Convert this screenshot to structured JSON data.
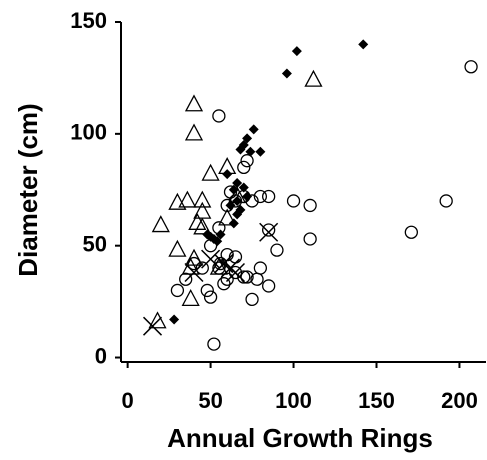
{
  "chart_data": {
    "type": "scatter",
    "xlabel": "Annual Growth Rings",
    "ylabel": "Diameter (cm)",
    "xlim": [
      -4,
      216
    ],
    "ylim": [
      -2,
      150
    ],
    "xticks": [
      0,
      50,
      100,
      150,
      200
    ],
    "yticks": [
      0,
      50,
      100,
      150
    ],
    "series": [
      {
        "marker": "circle",
        "color": "#000000",
        "x": [
          207,
          192,
          171,
          110,
          100,
          110,
          85,
          80,
          75,
          70,
          65,
          60,
          55,
          62,
          72,
          70,
          90,
          85,
          80,
          78,
          75,
          85,
          70,
          65,
          60,
          55,
          50,
          48,
          45,
          40,
          35,
          30,
          52,
          60,
          65,
          72,
          58,
          56,
          50,
          55
        ],
        "values": [
          130,
          70,
          56,
          68,
          70,
          53,
          72,
          72,
          70,
          72,
          70,
          68,
          108,
          74,
          88,
          85,
          48,
          57,
          40,
          35,
          26,
          32,
          36,
          38,
          35,
          40,
          27,
          30,
          40,
          42,
          35,
          30,
          6,
          46,
          45,
          36,
          33,
          42,
          50,
          58
        ]
      },
      {
        "marker": "diamond",
        "color": "#000000",
        "x": [
          142,
          102,
          96,
          76,
          72,
          70,
          74,
          80,
          68,
          60,
          66,
          70,
          64,
          72,
          66,
          62,
          68,
          66,
          64,
          48,
          52,
          54,
          50,
          56,
          28
        ],
        "values": [
          140,
          137,
          127,
          102,
          98,
          95,
          92,
          92,
          93,
          82,
          78,
          76,
          75,
          72,
          70,
          68,
          66,
          64,
          60,
          55,
          53,
          52,
          54,
          55,
          17
        ]
      },
      {
        "marker": "triangle",
        "color": "#000000",
        "x": [
          112,
          40,
          40,
          36,
          30,
          45,
          50,
          60,
          20,
          30,
          40,
          42,
          45,
          38,
          38,
          45,
          60,
          66,
          55,
          18
        ],
        "values": [
          124,
          113,
          100,
          70,
          69,
          70,
          82,
          85,
          59,
          48,
          44,
          60,
          58,
          40,
          26,
          65,
          62,
          72,
          40,
          16
        ]
      },
      {
        "marker": "cross",
        "color": "#000000",
        "x": [
          15,
          40,
          50,
          58,
          65,
          85,
          62
        ],
        "values": [
          14,
          38,
          44,
          42,
          38,
          56,
          40
        ]
      }
    ]
  }
}
